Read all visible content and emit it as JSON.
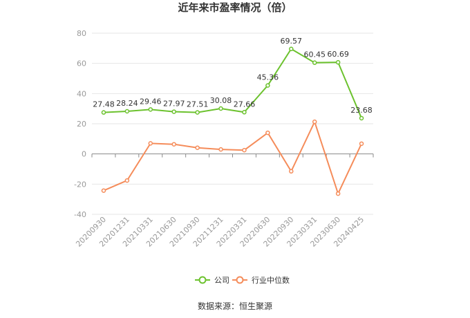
{
  "chart_data": {
    "type": "line",
    "title": "近年来市盈率情况（倍）",
    "categories": [
      "20200930",
      "20201231",
      "20210331",
      "20210630",
      "20210930",
      "20211231",
      "20220331",
      "20220630",
      "20220930",
      "20230331",
      "20230630",
      "20240425"
    ],
    "ylim": [
      -40,
      80
    ],
    "yticks": [
      -40,
      -20,
      0,
      20,
      40,
      60,
      80
    ],
    "grid": true,
    "legend_position": "bottom",
    "series": [
      {
        "name": "公司",
        "color": "#6cc22e",
        "show_labels": true,
        "values": [
          27.48,
          28.24,
          29.46,
          27.97,
          27.51,
          30.08,
          27.66,
          45.36,
          69.57,
          60.45,
          60.69,
          23.68
        ]
      },
      {
        "name": "行业中位数",
        "color": "#f58c5a",
        "show_labels": false,
        "values": [
          -24.3,
          -17.6,
          7.0,
          6.4,
          4.1,
          3.0,
          2.5,
          14.0,
          -11.5,
          21.3,
          -26.3,
          6.8
        ]
      }
    ]
  },
  "source": "数据来源：恒生聚源"
}
